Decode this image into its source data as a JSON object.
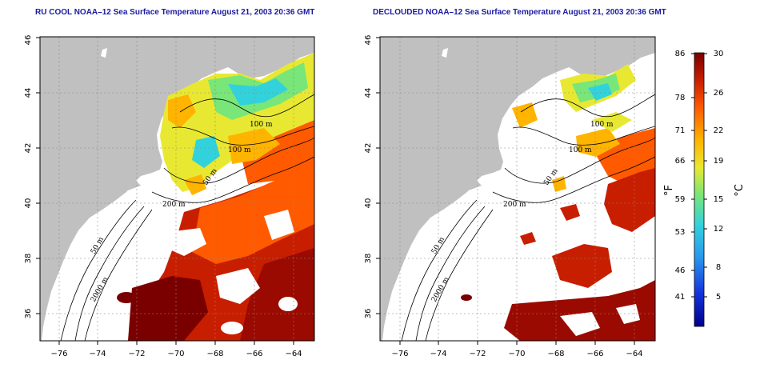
{
  "panels": [
    {
      "title": "RU COOL NOAA–12 Sea Surface Temperature August 21, 2003 20:36 GMT",
      "contour_labels": [
        "100 m",
        "100 m",
        "50 m",
        "200 m",
        "50 m",
        "2000 m"
      ]
    },
    {
      "title": "DECLOUDED NOAA–12 Sea Surface Temperature August 21, 2003 20:36 GMT",
      "contour_labels": [
        "100 m",
        "100 m",
        "50 m",
        "200 m",
        "50 m",
        "2000 m"
      ]
    }
  ],
  "axes": {
    "x_ticks": [
      "−76",
      "−74",
      "−72",
      "−70",
      "−68",
      "−66",
      "−64"
    ],
    "y_ticks": [
      "36",
      "38",
      "40",
      "42",
      "44",
      "46"
    ]
  },
  "colorbar": {
    "fahrenheit_unit": "°F",
    "celsius_unit": "°C",
    "fahrenheit_ticks": [
      "86",
      "78",
      "71",
      "66",
      "59",
      "53",
      "46",
      "41"
    ],
    "celsius_ticks": [
      "30",
      "26",
      "22",
      "19",
      "15",
      "12",
      "8",
      "5"
    ],
    "colors": [
      "#7a0000",
      "#c81e00",
      "#ff5a00",
      "#ffb400",
      "#e8e832",
      "#78e678",
      "#32d2dc",
      "#2896f0",
      "#1432dc",
      "#00008c"
    ]
  },
  "palette": {
    "land": "#c0c0c0",
    "title_color": "#1a1aa0"
  }
}
